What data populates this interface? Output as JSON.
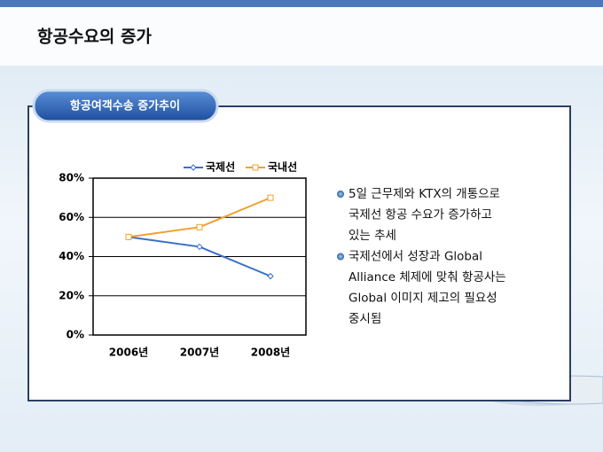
{
  "slide": {
    "title": "항공수요의 증가",
    "section": "항공여객수송 증가추이",
    "bullets": [
      [
        "5일 근무제와 KTX의 개통으로",
        "국제선 항공 수요가 증가하고",
        "있는 추세"
      ],
      [
        "국제선에서 성장과 Global",
        "Alliance 체제에 맞춰 항공사는",
        "Global 이미지 제고의 필요성",
        "중시됨"
      ]
    ]
  },
  "chart_data": {
    "type": "line",
    "categories": [
      "2006년",
      "2007년",
      "2008년"
    ],
    "series": [
      {
        "name": "국제선",
        "color": "#3a6fc8",
        "marker": "diamond",
        "values": [
          50,
          45,
          30
        ]
      },
      {
        "name": "국내선",
        "color": "#f0a030",
        "marker": "square",
        "values": [
          50,
          55,
          70
        ]
      }
    ],
    "ylim": [
      0,
      80
    ],
    "yticks": [
      {
        "value": 0,
        "label": "0%"
      },
      {
        "value": 20,
        "label": "20%"
      },
      {
        "value": 40,
        "label": "40%"
      },
      {
        "value": 60,
        "label": "60%"
      },
      {
        "value": 80,
        "label": "80%"
      }
    ],
    "grid": true,
    "legend": "top"
  }
}
